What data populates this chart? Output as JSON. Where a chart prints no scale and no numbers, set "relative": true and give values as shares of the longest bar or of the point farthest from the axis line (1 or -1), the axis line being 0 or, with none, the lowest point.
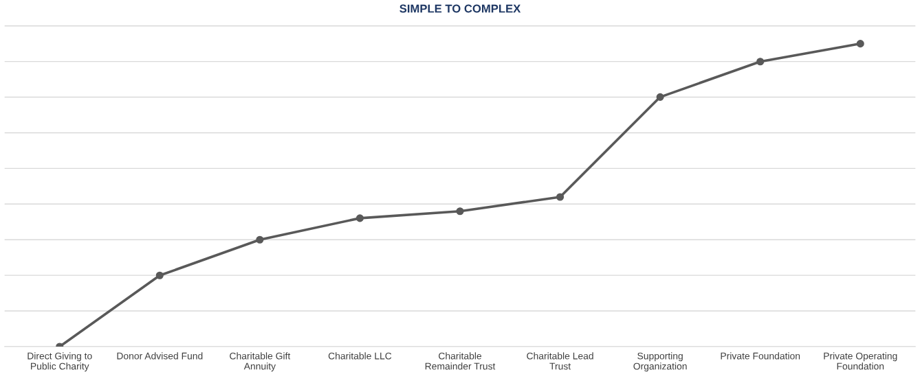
{
  "chart_data": {
    "type": "line",
    "title": "SIMPLE TO COMPLEX",
    "relative": true,
    "grid": "y",
    "marker": "circle",
    "line_style": "solid",
    "categories": [
      "Direct Giving to\nPublic Charity",
      "Donor Advised Fund",
      "Charitable Gift\nAnnuity",
      "Charitable LLC",
      "Charitable\nRemainder Trust",
      "Charitable Lead\nTrust",
      "Supporting\nOrganization",
      "Private Foundation",
      "Private Operating\nFoundation"
    ],
    "series": [
      {
        "color": "#595959",
        "values": [
          0,
          0.235,
          0.353,
          0.424,
          0.447,
          0.494,
          0.824,
          0.941,
          1
        ]
      }
    ]
  }
}
